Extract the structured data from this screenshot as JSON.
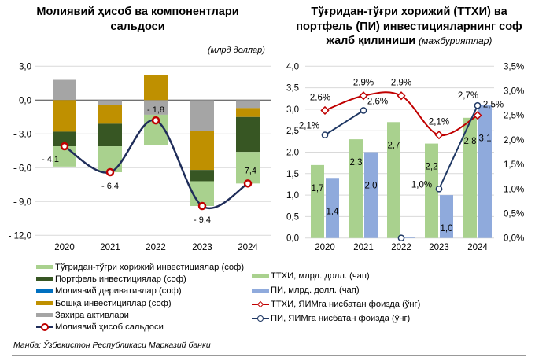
{
  "titles": {
    "left": "Молиявий ҳисоб ва компонентлари сальдоси",
    "right": "Тўғридан-тўғри хорижий (ТТХИ) ва портфель (ПИ) инвестицияларнинг соф жалб қилиниши",
    "right_note": "(мажбуриятлар)",
    "left_unit": "(млрд доллар)"
  },
  "source": "Манба: Ўзбекистон Республикаси Марказий банки",
  "chart_data": [
    {
      "type": "bar",
      "stacked": true,
      "title": "Молиявий ҳисоб ва компонентлари сальдоси",
      "unit": "(млрд доллар)",
      "categories": [
        "2020",
        "2021",
        "2022",
        "2023",
        "2024"
      ],
      "ylim": [
        -12,
        3
      ],
      "yticks": [
        3,
        0,
        -3,
        -6,
        -9,
        -12
      ],
      "ytick_labels": [
        "3,0",
        "0,0",
        "- 3,0",
        "- 6,0",
        "- 9,0",
        "- 12,0"
      ],
      "grid": true,
      "legend": "bottom",
      "series": [
        {
          "name": "Тўғридан-тўғри хорижий инвестициялар (соф)",
          "color": "#a9d18e",
          "values": [
            -1.8,
            -2.3,
            -2.7,
            -2.2,
            -2.8
          ]
        },
        {
          "name": "Портфель инвестициялар (соф)",
          "color": "#375623",
          "values": [
            -1.3,
            -2.0,
            0.0,
            -1.0,
            -3.1
          ]
        },
        {
          "name": "Молиявий деривативлар (соф)",
          "color": "#0070c0",
          "values": [
            0.0,
            0.0,
            0.0,
            0.0,
            0.0
          ]
        },
        {
          "name": "Бошқа инвестициялар (соф)",
          "color": "#bf9000",
          "values": [
            -2.8,
            -1.7,
            2.2,
            -3.5,
            -0.8
          ]
        },
        {
          "name": "Захира активлари",
          "color": "#a5a5a5",
          "values": [
            1.8,
            -0.4,
            -1.3,
            -2.7,
            -0.7
          ]
        }
      ],
      "line": {
        "name": "Молиявий ҳисоб сальдоси",
        "color": "#1f2d5a",
        "marker_color": "#c00000",
        "values": [
          -4.1,
          -6.4,
          -1.8,
          -9.4,
          -7.4
        ],
        "labels": [
          "- 4,1",
          "- 6,4",
          "- 1,8",
          "- 9,4",
          "- 7,4"
        ]
      }
    },
    {
      "type": "bar",
      "title": "Тўғридан-тўғри хорижий (ТТХИ) ва портфель (ПИ) инвестицияларнинг соф жалб қилиниши (мажбуриятлар)",
      "categories": [
        "2020",
        "2021",
        "2022",
        "2023",
        "2024"
      ],
      "ylim": [
        0,
        4
      ],
      "yticks": [
        0,
        0.5,
        1,
        1.5,
        2,
        2.5,
        3,
        3.5,
        4
      ],
      "ytick_labels": [
        "0,0",
        "0,5",
        "1,0",
        "1,5",
        "2,0",
        "2,5",
        "3,0",
        "3,5",
        "4,0"
      ],
      "y2lim": [
        0,
        3.5
      ],
      "y2ticks": [
        0,
        0.5,
        1,
        1.5,
        2,
        2.5,
        3,
        3.5
      ],
      "y2tick_labels": [
        "0,0%",
        "0,5%",
        "1,0%",
        "1,5%",
        "2,0%",
        "2,5%",
        "3,0%",
        "3,5%"
      ],
      "grid": true,
      "legend": "bottom",
      "bars": [
        {
          "name": "ТТХИ, млрд. долл. (чап)",
          "color": "#a9d18e",
          "values": [
            1.7,
            2.3,
            2.7,
            2.2,
            2.8
          ],
          "labels": [
            "1,7",
            "2,3",
            "2,7",
            "2,2",
            "2,8"
          ]
        },
        {
          "name": "ПИ, млрд. долл. (чап)",
          "color": "#8faadc",
          "values": [
            1.4,
            2.0,
            0.02,
            1.0,
            3.1
          ],
          "labels": [
            "1,4",
            "2,0",
            "",
            "1,0",
            "3,1"
          ]
        }
      ],
      "lines": [
        {
          "name": "ТТХИ, ЯИМга нисбатан фоизда (ўнг)",
          "color": "#c00000",
          "values": [
            2.6,
            2.9,
            2.9,
            2.1,
            2.5
          ],
          "labels": [
            "2,6%",
            "2,9%",
            "2,9%",
            "2,1%",
            "2,5%"
          ]
        },
        {
          "name": "ПИ, ЯИМга нисбатан фоизда (ўнг)",
          "color": "#1f3864",
          "values": [
            2.1,
            2.6,
            0.0,
            1.0,
            2.7
          ],
          "labels": [
            "2,1%",
            "2,6%",
            "",
            "1,0%",
            "2,7%"
          ]
        }
      ]
    }
  ]
}
